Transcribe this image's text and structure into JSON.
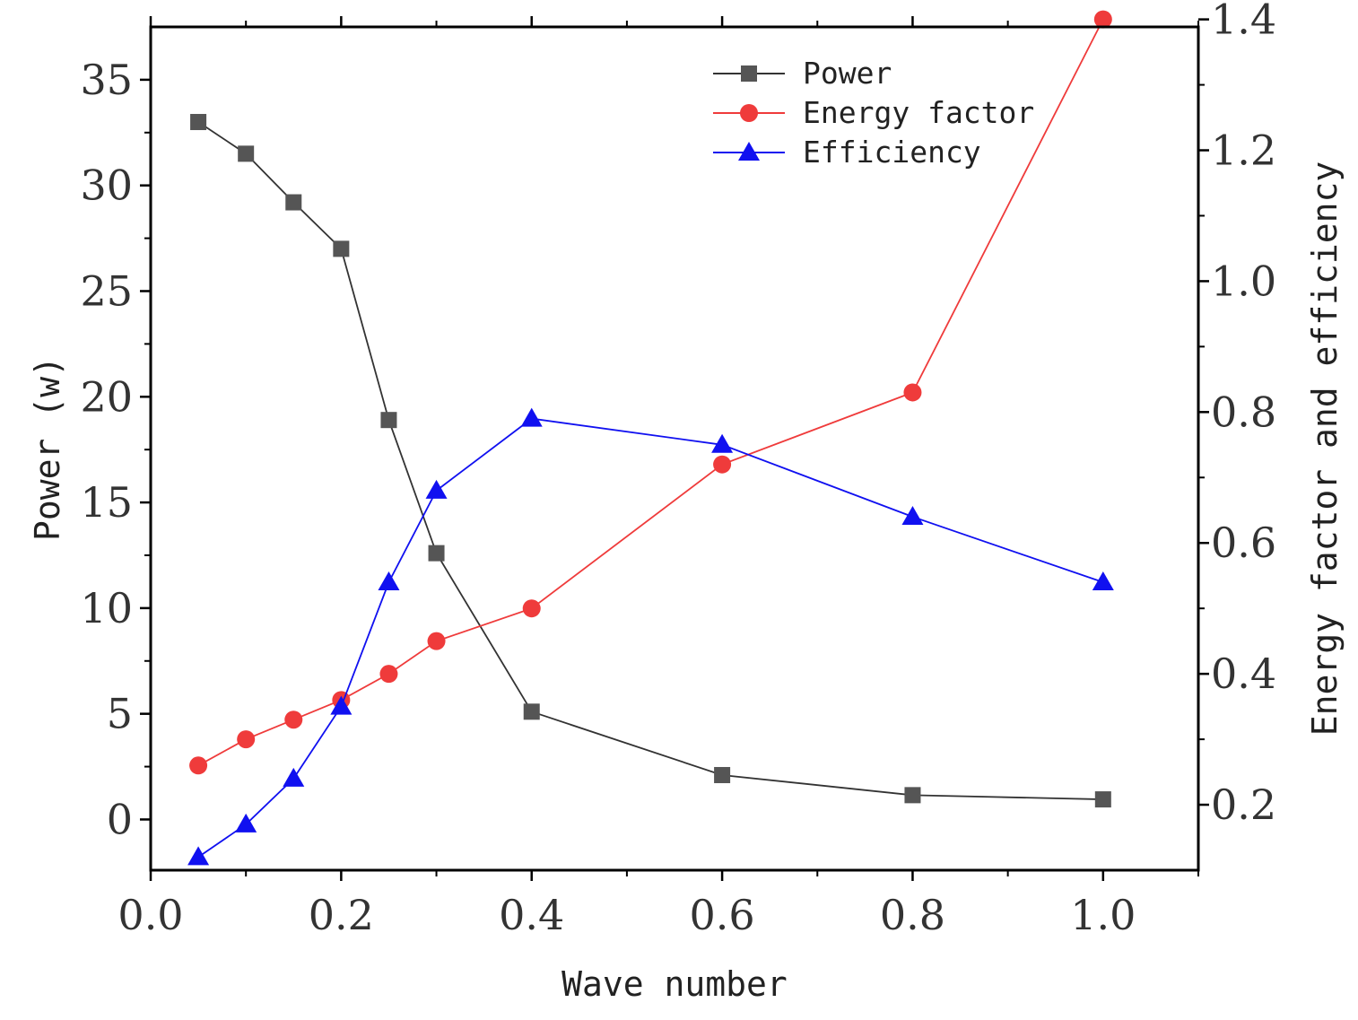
{
  "chart_data": {
    "type": "line",
    "xlabel": "Wave number",
    "ylabel_left": "Power (w)",
    "ylabel_right": "Energy factor and efficiency",
    "xlim": [
      0.0,
      1.1
    ],
    "ylim_left": [
      -2.4,
      37.5
    ],
    "ylim_right": [
      0.1,
      1.3885
    ],
    "x_ticks": [
      {
        "v": 0.0,
        "label": "0.0"
      },
      {
        "v": 0.2,
        "label": "0.2"
      },
      {
        "v": 0.4,
        "label": "0.4"
      },
      {
        "v": 0.6,
        "label": "0.6"
      },
      {
        "v": 0.8,
        "label": "0.8"
      },
      {
        "v": 1.0,
        "label": "1.0"
      }
    ],
    "x_minor_ticks": [
      0.1,
      0.3,
      0.5,
      0.7,
      0.9,
      1.1
    ],
    "y_left_ticks": [
      {
        "v": 0,
        "label": "0"
      },
      {
        "v": 5,
        "label": "5"
      },
      {
        "v": 10,
        "label": "10"
      },
      {
        "v": 15,
        "label": "15"
      },
      {
        "v": 20,
        "label": "20"
      },
      {
        "v": 25,
        "label": "25"
      },
      {
        "v": 30,
        "label": "30"
      },
      {
        "v": 35,
        "label": "35"
      }
    ],
    "y_left_minor_ticks": [
      2.5,
      7.5,
      12.5,
      17.5,
      22.5,
      27.5,
      32.5
    ],
    "y_right_ticks": [
      {
        "v": 0.2,
        "label": "0.2"
      },
      {
        "v": 0.4,
        "label": "0.4"
      },
      {
        "v": 0.6,
        "label": "0.6"
      },
      {
        "v": 0.8,
        "label": "0.8"
      },
      {
        "v": 1.0,
        "label": "1.0"
      },
      {
        "v": 1.2,
        "label": "1.2"
      },
      {
        "v": 1.4,
        "label": "1.4"
      }
    ],
    "y_right_minor_ticks": [
      0.3,
      0.5,
      0.7,
      0.9,
      1.1,
      1.3
    ],
    "x": [
      0.05,
      0.1,
      0.15,
      0.2,
      0.25,
      0.3,
      0.4,
      0.6,
      0.8,
      1.0
    ],
    "series": [
      {
        "name": "Power",
        "axis": "left",
        "marker": "square",
        "color": "#555555",
        "line_color": "#333333",
        "values": [
          33.0,
          31.5,
          29.2,
          27.0,
          18.9,
          12.6,
          5.1,
          2.1,
          1.15,
          0.95
        ]
      },
      {
        "name": "Energy factor",
        "axis": "right",
        "marker": "circle",
        "color": "#ef3b3b",
        "line_color": "#ef3b3b",
        "values": [
          0.26,
          0.3,
          0.33,
          0.36,
          0.4,
          0.45,
          0.5,
          0.72,
          0.83,
          1.4
        ]
      },
      {
        "name": "Efficiency",
        "axis": "right",
        "marker": "triangle",
        "color": "#1010f0",
        "line_color": "#1010f0",
        "values": [
          0.12,
          0.17,
          0.24,
          0.35,
          0.54,
          0.68,
          0.79,
          0.75,
          0.64,
          0.54
        ]
      }
    ],
    "legend_position": "top-right"
  }
}
